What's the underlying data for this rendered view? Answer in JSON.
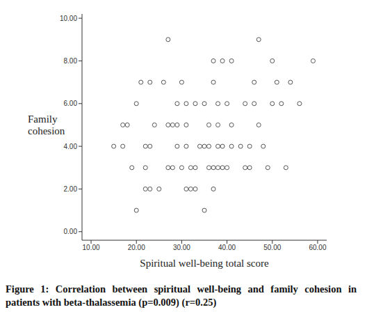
{
  "chart_data": {
    "type": "scatter",
    "caption": "Figure 1: Correlation between spiritual well-being and family cohesion in patients with beta-thalassemia (p=0.009) (r=0.25)",
    "xlabel": "Spiritual well-being total score",
    "ylabel": "Family cohesion",
    "x": [
      27,
      47,
      37,
      39,
      41,
      50,
      59,
      21,
      23,
      26,
      30,
      37,
      46,
      51,
      54,
      20,
      29,
      31,
      33,
      35,
      38,
      40,
      44,
      46,
      50,
      52,
      56,
      17,
      18,
      24,
      27,
      28,
      29,
      31,
      36,
      38,
      41,
      47,
      15,
      17,
      22,
      23,
      29,
      31,
      34,
      35,
      36,
      38,
      39,
      41,
      43,
      45,
      48,
      19,
      22,
      27,
      28,
      30,
      32,
      33,
      36,
      37,
      38,
      39,
      40,
      44,
      45,
      49,
      53,
      22,
      23,
      25,
      31,
      32,
      33,
      37,
      20,
      35
    ],
    "values": [
      9,
      9,
      8,
      8,
      8,
      8,
      8,
      7,
      7,
      7,
      7,
      7,
      7,
      7,
      7,
      6,
      6,
      6,
      6,
      6,
      6,
      6,
      6,
      6,
      6,
      6,
      6,
      5,
      5,
      5,
      5,
      5,
      5,
      5,
      5,
      5,
      5,
      5,
      4,
      4,
      4,
      4,
      4,
      4,
      4,
      4,
      4,
      4,
      4,
      4,
      4,
      4,
      4,
      3,
      3,
      3,
      3,
      3,
      3,
      3,
      3,
      3,
      3,
      3,
      3,
      3,
      3,
      3,
      3,
      2,
      2,
      2,
      2,
      2,
      2,
      2,
      1,
      1
    ],
    "color": "#555555",
    "marker": "circle",
    "grid": false,
    "xlim": [
      8,
      62
    ],
    "xticks": [
      {
        "value": 10,
        "label": "10.00"
      },
      {
        "value": 20,
        "label": "20.00"
      },
      {
        "value": 30,
        "label": "30.00"
      },
      {
        "value": 40,
        "label": "40.00"
      },
      {
        "value": 50,
        "label": "50.00"
      },
      {
        "value": 60,
        "label": "60.00"
      }
    ],
    "ylim": [
      -0.4,
      10.2
    ],
    "yticks": [
      {
        "value": 0,
        "label": "0.00"
      },
      {
        "value": 2,
        "label": "2.00"
      },
      {
        "value": 4,
        "label": "4.00"
      },
      {
        "value": 6,
        "label": "6.00"
      },
      {
        "value": 8,
        "label": "8.00"
      },
      {
        "value": 10,
        "label": "10.00"
      }
    ]
  }
}
